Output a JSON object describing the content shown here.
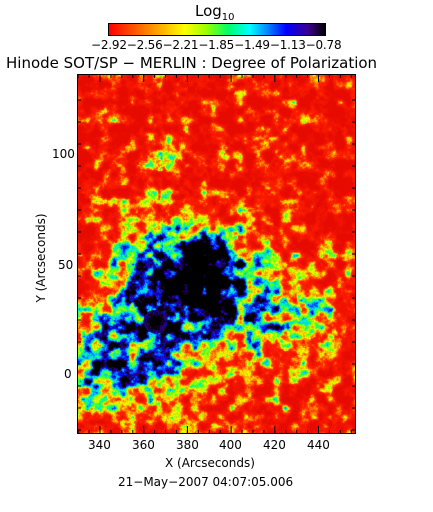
{
  "colorbar": {
    "title_main": "Log",
    "title_sub": "10",
    "ticks": [
      "-2.92",
      "-2.56",
      "-2.21",
      "-1.85",
      "-1.49",
      "-1.13",
      "-0.78"
    ],
    "ticks_text": "−2.92−2.56−2.21−1.85−1.49−1.13−0.78",
    "palette": [
      "#ff0000",
      "#ff4a00",
      "#ffa000",
      "#ffff00",
      "#9cff00",
      "#00ff66",
      "#00ffff",
      "#008cff",
      "#0000ff",
      "#3c0090",
      "#000000"
    ]
  },
  "chart": {
    "title": "Hinode SOT/SP − MERLIN : Degree of Polarization",
    "xlabel": "X (Arcseconds)",
    "ylabel": "Y (Arcseconds)",
    "xticks": [
      "340",
      "360",
      "380",
      "400",
      "420",
      "440"
    ],
    "yticks": [
      "100",
      "50",
      "0"
    ],
    "timestamp": "21−May−2007 04:07:05.006"
  }
}
